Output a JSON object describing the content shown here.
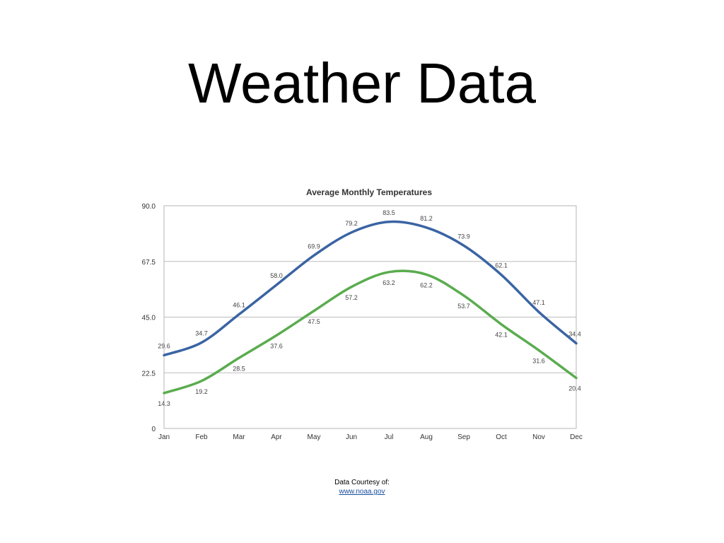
{
  "slide": {
    "title": "Weather Data"
  },
  "credit": {
    "line1": "Data Courtesy of:",
    "link": "www.noaa.gov"
  },
  "chart_data": {
    "type": "line",
    "title": "Average Monthly Temperatures",
    "xlabel": "",
    "ylabel": "",
    "categories": [
      "Jan",
      "Feb",
      "Mar",
      "Apr",
      "May",
      "Jun",
      "Jul",
      "Aug",
      "Sep",
      "Oct",
      "Nov",
      "Dec"
    ],
    "yticks": [
      "0",
      "22.5",
      "45.0",
      "67.5",
      "90.0"
    ],
    "ylim": [
      0,
      90
    ],
    "grid": true,
    "series": [
      {
        "color": "#3a64a3",
        "values": [
          29.6,
          34.7,
          46.1,
          58.0,
          69.9,
          79.2,
          83.5,
          81.2,
          73.9,
          62.1,
          47.1,
          34.4
        ],
        "labels": [
          "29.6",
          "34.7",
          "46.1",
          "58.0",
          "69.9",
          "79.2",
          "83.5",
          "81.2",
          "73.9",
          "62.1",
          "47.1",
          "34.4"
        ]
      },
      {
        "color": "#5aac4e",
        "values": [
          14.3,
          19.2,
          28.5,
          37.6,
          47.5,
          57.2,
          63.2,
          62.2,
          53.7,
          42.1,
          31.6,
          20.4
        ],
        "labels": [
          "14.3",
          "19.2",
          "28.5",
          "37.6",
          "47.5",
          "57.2",
          "63.2",
          "62.2",
          "53.7",
          "42.1",
          "31.6",
          "20.4"
        ]
      }
    ]
  }
}
